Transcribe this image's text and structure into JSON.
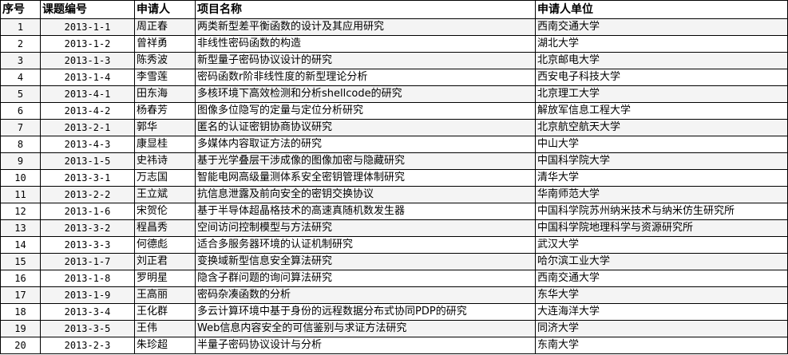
{
  "headers": [
    "序号",
    "课题编号",
    "申请人",
    "项目名称",
    "申请人单位"
  ],
  "rows": [
    [
      "1",
      "2013-1-1",
      "周正春",
      "两类新型差平衡函数的设计及其应用研究",
      "西南交通大学"
    ],
    [
      "2",
      "2013-1-2",
      "曾祥勇",
      "非线性密码函数的构造",
      "湖北大学"
    ],
    [
      "3",
      "2013-1-3",
      "陈秀波",
      "新型量子密码协议设计的研究",
      "北京邮电大学"
    ],
    [
      "4",
      "2013-1-4",
      "李雪莲",
      "密码函数r阶非线性度的新型理论分析",
      "西安电子科技大学"
    ],
    [
      "5",
      "2013-4-1",
      "田东海",
      "多核环境下高效检测和分析shellcode的研究",
      "北京理工大学"
    ],
    [
      "6",
      "2013-4-2",
      "杨春芳",
      "图像多位隐写的定量与定位分析研究",
      "解放军信息工程大学"
    ],
    [
      "7",
      "2013-2-1",
      "郭华",
      "匿名的认证密钥协商协议研究",
      "北京航空航天大学"
    ],
    [
      "8",
      "2013-4-3",
      "康显桂",
      "多媒体内容取证方法的研究",
      "中山大学"
    ],
    [
      "9",
      "2013-1-5",
      "史祎诗",
      "基于光学叠层干涉成像的图像加密与隐藏研究",
      "中国科学院大学"
    ],
    [
      "10",
      "2013-3-1",
      "万志国",
      "智能电网高级量测体系安全密钥管理体制研究",
      "清华大学"
    ],
    [
      "11",
      "2013-2-2",
      "王立斌",
      "抗信息泄露及前向安全的密钥交换协议",
      "华南师范大学"
    ],
    [
      "12",
      "2013-1-6",
      "宋贺伦",
      "基于半导体超晶格技术的高速真随机数发生器",
      "中国科学院苏州纳米技术与纳米仿生研究所"
    ],
    [
      "13",
      "2013-3-2",
      "程昌秀",
      "空间访问控制模型与方法研究",
      "中国科学院地理科学与资源研究所"
    ],
    [
      "14",
      "2013-3-3",
      "何德彪",
      "适合多服务器环境的认证机制研究",
      "武汉大学"
    ],
    [
      "15",
      "2013-1-7",
      "刘正君",
      "变换域新型信息安全算法研究",
      "哈尔滨工业大学"
    ],
    [
      "16",
      "2013-1-8",
      "罗明星",
      "隐含子群问题的询问算法研究",
      "西南交通大学"
    ],
    [
      "17",
      "2013-1-9",
      "王高丽",
      "密码杂凑函数的分析",
      "东华大学"
    ],
    [
      "18",
      "2013-3-4",
      "王化群",
      "多云计算环境中基于身份的远程数据分布式协同PDP的研究",
      "大连海洋大学"
    ],
    [
      "19",
      "2013-3-5",
      "王伟",
      "Web信息内容安全的可信鉴别与求证方法研究",
      "同济大学"
    ],
    [
      "20",
      "2013-2-3",
      "朱珍超",
      "半量子密码协议设计与分析",
      "东南大学"
    ]
  ]
}
